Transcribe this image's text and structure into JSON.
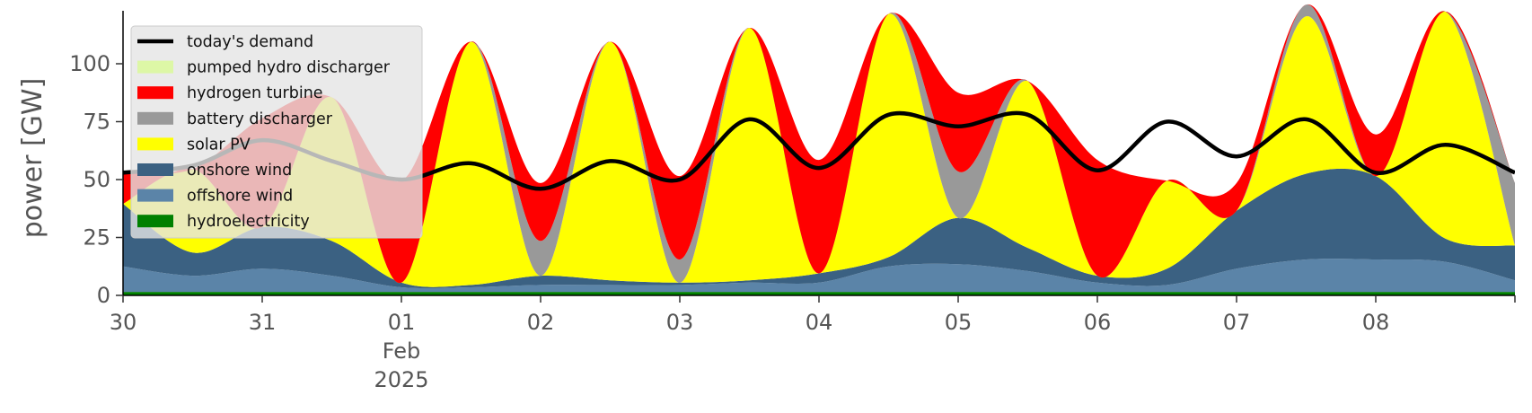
{
  "chart_data": {
    "type": "area",
    "title": "",
    "xlabel": "",
    "ylabel": "power [GW]",
    "ylim": [
      0,
      120
    ],
    "xlim_days": [
      0,
      10
    ],
    "grid": false,
    "legend_position": "top-left",
    "y_ticks": [
      {
        "value": 0,
        "label": "0"
      },
      {
        "value": 25,
        "label": "25"
      },
      {
        "value": 50,
        "label": "50"
      },
      {
        "value": 75,
        "label": "75"
      },
      {
        "value": 100,
        "label": "100"
      }
    ],
    "x_ticks": [
      {
        "value": 0,
        "label": "30"
      },
      {
        "value": 1,
        "label": "31"
      },
      {
        "value": 2,
        "label": "01"
      },
      {
        "value": 3,
        "label": "02"
      },
      {
        "value": 4,
        "label": "03"
      },
      {
        "value": 5,
        "label": "04"
      },
      {
        "value": 6,
        "label": "05"
      },
      {
        "value": 7,
        "label": "06"
      },
      {
        "value": 8,
        "label": "07"
      },
      {
        "value": 9,
        "label": "08"
      },
      {
        "value": 10,
        "label": ""
      }
    ],
    "x_sublabels": [
      {
        "value": 2,
        "lines": [
          "Feb",
          "2025"
        ]
      }
    ],
    "x_dates": [
      "2025-01-30",
      "2025-01-30 12:00",
      "2025-01-31",
      "2025-01-31 12:00",
      "2025-02-01",
      "2025-02-01 12:00",
      "2025-02-02",
      "2025-02-02 12:00",
      "2025-02-03",
      "2025-02-03 12:00",
      "2025-02-04",
      "2025-02-04 12:00",
      "2025-02-05",
      "2025-02-05 12:00",
      "2025-02-06",
      "2025-02-06 12:00",
      "2025-02-07",
      "2025-02-07 12:00",
      "2025-02-08",
      "2025-02-08 12:00",
      "2025-02-09"
    ],
    "x": [
      0,
      0.5,
      1,
      1.5,
      2,
      2.5,
      3,
      3.5,
      4,
      4.5,
      5,
      5.5,
      6,
      6.5,
      7,
      7.5,
      8,
      8.5,
      9,
      9.5,
      10
    ],
    "series": [
      {
        "name": "hydroelectricity",
        "color": "#008000",
        "values": [
          1.5,
          1.5,
          1.5,
          1.5,
          1.5,
          1.5,
          1.5,
          1.5,
          1.5,
          1.5,
          1.5,
          1.5,
          1.5,
          1.5,
          1.5,
          1.5,
          1.5,
          1.5,
          1.5,
          1.5,
          1.5
        ]
      },
      {
        "name": "offshore wind",
        "color": "#5b84a8",
        "values": [
          11,
          7,
          10,
          7,
          2,
          2,
          3,
          3,
          3,
          4,
          4,
          11,
          12,
          9,
          4,
          3,
          10,
          14,
          14,
          13,
          5
        ]
      },
      {
        "name": "onshore wind",
        "color": "#3b6182",
        "values": [
          27,
          10,
          18,
          15,
          2,
          1,
          4,
          2,
          1,
          1,
          4,
          4,
          20,
          10,
          3,
          7,
          25,
          37,
          36,
          10,
          15
        ]
      },
      {
        "name": "solar PV",
        "color": "#ffff00",
        "values": [
          0,
          36,
          0,
          62,
          0,
          105,
          0,
          103,
          0,
          109,
          0,
          105,
          0,
          72,
          0,
          38,
          0,
          68,
          0,
          98,
          0
        ]
      },
      {
        "name": "battery discharger",
        "color": "#999999",
        "values": [
          0,
          0,
          0,
          0,
          0,
          0,
          15,
          0,
          10,
          0,
          0,
          0,
          20,
          0,
          0,
          0,
          0,
          5,
          0,
          0,
          27
        ]
      },
      {
        "name": "hydrogen turbine",
        "color": "#ff0000",
        "values": [
          14,
          0,
          47,
          0,
          44,
          0,
          25,
          0,
          36,
          0,
          49,
          0,
          34,
          0,
          50,
          0,
          12,
          0,
          18,
          0,
          0
        ]
      },
      {
        "name": "pumped hydro discharger",
        "color": "#ddf7a6",
        "values": [
          0,
          0,
          0,
          0,
          0,
          0,
          0,
          0,
          0,
          0,
          0,
          0,
          0,
          0,
          0,
          0,
          0,
          0,
          0,
          0,
          0
        ]
      }
    ],
    "demand": {
      "name": "today's demand",
      "color": "#000000",
      "values": [
        53,
        56,
        67,
        58,
        50,
        57,
        46,
        58,
        50,
        76,
        55,
        78,
        73,
        78,
        54,
        75,
        60,
        76,
        53,
        65,
        53
      ]
    },
    "legend": [
      {
        "label": "today's demand",
        "kind": "line",
        "color": "#000000"
      },
      {
        "label": "pumped hydro discharger",
        "kind": "patch",
        "color": "#ddf7a6"
      },
      {
        "label": "hydrogen turbine",
        "kind": "patch",
        "color": "#ff0000"
      },
      {
        "label": "battery discharger",
        "kind": "patch",
        "color": "#999999"
      },
      {
        "label": "solar PV",
        "kind": "patch",
        "color": "#ffff00"
      },
      {
        "label": "onshore wind",
        "kind": "patch",
        "color": "#3b6182"
      },
      {
        "label": "offshore wind",
        "kind": "patch",
        "color": "#5b84a8"
      },
      {
        "label": "hydroelectricity",
        "kind": "patch",
        "color": "#008000"
      }
    ]
  }
}
